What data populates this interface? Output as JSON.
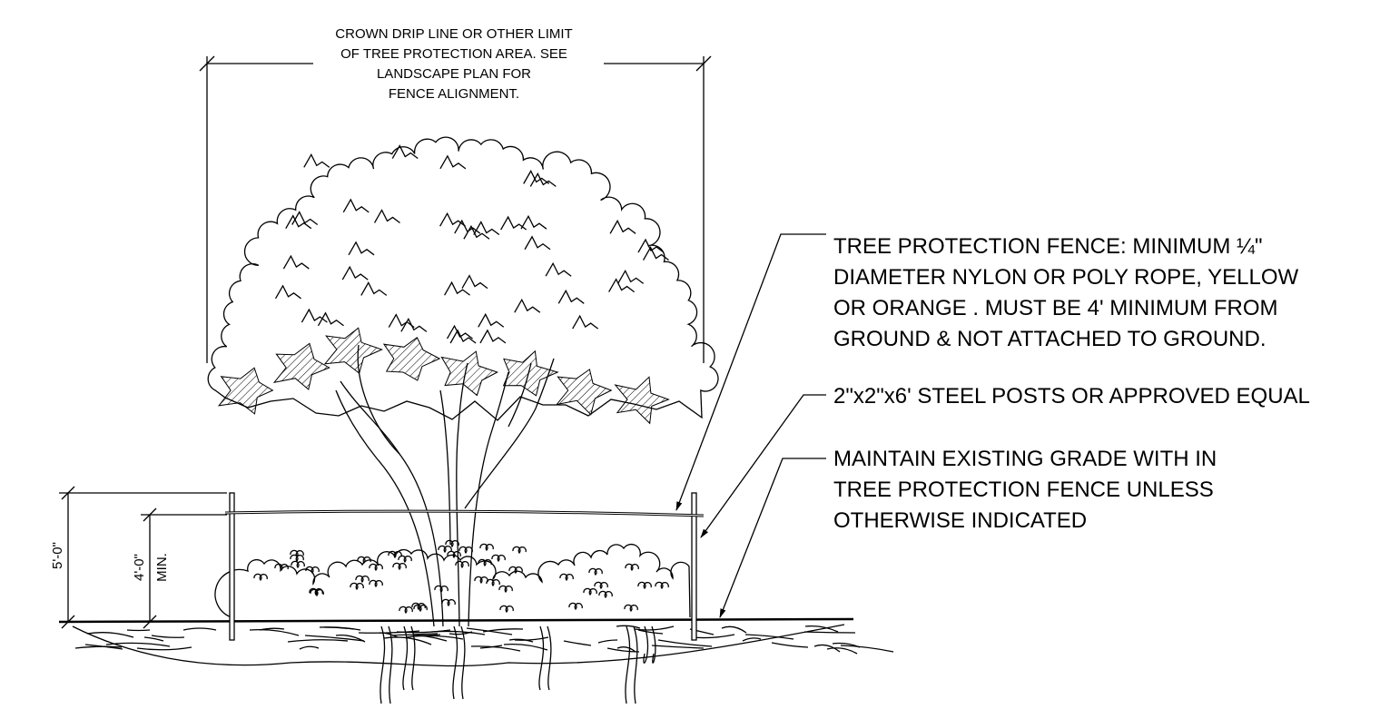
{
  "crown_note": {
    "lines": [
      "CROWN DRIP LINE OR OTHER LIMIT",
      "OF TREE PROTECTION AREA. SEE",
      "LANDSCAPE PLAN FOR",
      "FENCE ALIGNMENT."
    ]
  },
  "callouts": [
    {
      "lines": [
        "TREE PROTECTION FENCE: MINIMUM ¼\"",
        "DIAMETER NYLON OR POLY ROPE, YELLOW",
        "OR ORANGE . MUST BE 4' MINIMUM FROM",
        "GROUND & NOT ATTACHED TO GROUND."
      ]
    },
    {
      "lines": [
        "2\"x2\"x6' STEEL POSTS OR APPROVED EQUAL"
      ]
    },
    {
      "lines": [
        "MAINTAIN EXISTING GRADE WITH IN",
        "TREE PROTECTION FENCE UNLESS",
        "OTHERWISE INDICATED"
      ]
    }
  ],
  "dimensions": [
    {
      "label": "5'-0\""
    },
    {
      "label": "4'-0\"",
      "qualifier": "MIN."
    }
  ]
}
